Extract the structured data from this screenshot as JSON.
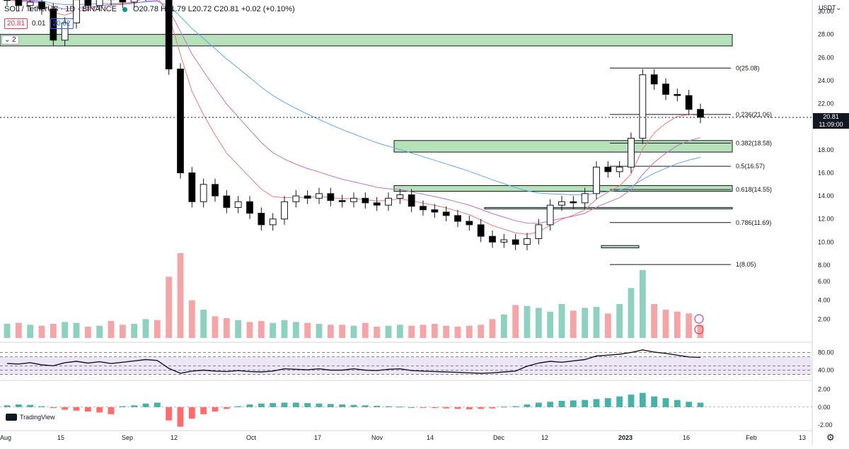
{
  "header": {
    "symbol": "SOL / TetherUS · 1D · BINANCE",
    "ohlc": "O20.78 H21.79 L20.72 C20.81 +0.02 (+0.10%)",
    "sell_price": "20.81",
    "spread": "0.01",
    "buy_price": "20.82",
    "indicator_count": "2",
    "currency": "USDT"
  },
  "price_axis": {
    "ticks": [
      "30.00",
      "28.00",
      "26.00",
      "24.00",
      "22.00",
      "20.00",
      "18.00",
      "16.00",
      "14.00",
      "12.00",
      "10.00",
      "8.00",
      "6.00",
      "4.00",
      "2.00"
    ],
    "current_price": "20.81",
    "countdown": "11:09:00"
  },
  "time_axis": {
    "labels": [
      "Aug",
      "15",
      "Sep",
      "12",
      "Oct",
      "17",
      "Nov",
      "14",
      "Dec",
      "12",
      "2023",
      "16",
      "Feb",
      "13"
    ]
  },
  "rsi_axis": {
    "ticks": [
      "80.00",
      "40.00"
    ]
  },
  "macd_axis": {
    "ticks": [
      "2.00",
      "0.00",
      "-2.00"
    ]
  },
  "branding": "TradingView",
  "colors": {
    "up": "#089981",
    "down": "#000000",
    "zone": "#b7e1b9",
    "volume_up": "#8fd1c1",
    "volume_down": "#f5a5a5",
    "ema_blue": "#5aaaf0",
    "ema_red": "#f27878",
    "ema_purple": "#c070c8"
  },
  "chart_data": [
    {
      "type": "candlestick",
      "symbol": "SOL/USDT",
      "interval": "1D",
      "ylim": [
        8.0,
        30.0
      ],
      "fibonacci_levels": [
        {
          "level": "0",
          "price": 25.08,
          "label": "0(25.08)"
        },
        {
          "level": "0.236",
          "price": 21.06,
          "label": "0.236(21.06)"
        },
        {
          "level": "0.382",
          "price": 18.58,
          "label": "0.382(18.58)"
        },
        {
          "level": "0.5",
          "price": 16.57,
          "label": "0.5(16.57)"
        },
        {
          "level": "0.618",
          "price": 14.55,
          "label": "0.618(14.55)"
        },
        {
          "level": "0.786",
          "price": 11.69,
          "label": "0.786(11.69)"
        },
        {
          "level": "1",
          "price": 8.05,
          "label": "1(8.05)"
        }
      ],
      "support_zones": [
        {
          "from": 27.0,
          "to": 28.0
        },
        {
          "from": 17.8,
          "to": 18.8
        },
        {
          "from": 14.4,
          "to": 14.9
        },
        {
          "from": 12.9,
          "to": 13.0
        },
        {
          "from": 9.5,
          "to": 9.7
        }
      ],
      "series": [
        {
          "name": "SOL/USDT",
          "close": [
            31,
            30.5,
            30.8,
            30.2,
            27.5,
            29,
            31,
            30.5,
            31.5,
            31,
            30.8,
            31.4,
            32,
            31.5,
            25,
            16,
            13.5,
            15,
            14,
            13,
            13.5,
            12.5,
            11.5,
            12,
            13.5,
            14,
            13.8,
            14.2,
            13.6,
            13.5,
            13.8,
            13.4,
            13.2,
            13.8,
            14.1,
            13.1,
            12.8,
            12.6,
            12.3,
            11.8,
            11.5,
            10.5,
            10,
            10.2,
            9.8,
            10.3,
            11.5,
            13.2,
            13.5,
            13.4,
            14.2,
            16.5,
            16.1,
            16.5,
            19,
            24.5,
            23.7,
            22.8,
            22.7,
            21.5,
            20.81
          ]
        }
      ]
    },
    {
      "type": "bar",
      "name": "Volume",
      "ylim": [
        0,
        9
      ],
      "values": [
        1.5,
        1.6,
        1.4,
        1.3,
        1.5,
        1.7,
        1.6,
        1.2,
        1.3,
        1.8,
        1.4,
        1.5,
        2.0,
        1.9,
        6.5,
        9.0,
        4.0,
        3.0,
        2.3,
        2.1,
        1.9,
        1.7,
        1.8,
        1.6,
        1.9,
        1.7,
        1.6,
        1.5,
        1.4,
        1.4,
        1.3,
        1.6,
        1.2,
        1.3,
        1.4,
        1.3,
        1.4,
        1.5,
        1.3,
        1.2,
        1.3,
        1.4,
        2.0,
        2.5,
        3.5,
        3.4,
        3.2,
        2.8,
        3.6,
        2.9,
        3.2,
        3.3,
        2.6,
        3.6,
        5.3,
        7.2,
        3.6,
        3.0,
        2.8,
        2.6,
        1.4
      ]
    },
    {
      "type": "line",
      "name": "RSI",
      "ylim": [
        20,
        100
      ],
      "hlines": [
        80,
        70,
        50,
        40,
        30
      ],
      "values": [
        55,
        54,
        57,
        52,
        50,
        57,
        60,
        56,
        59,
        55,
        58,
        61,
        64,
        62,
        44,
        33,
        38,
        40,
        38,
        37,
        39,
        37,
        36,
        38,
        43,
        42,
        41,
        43,
        40,
        40,
        43,
        40,
        39,
        42,
        43,
        39,
        38,
        37,
        36,
        35,
        34,
        33,
        34,
        36,
        38,
        49,
        56,
        60,
        58,
        61,
        64,
        72,
        74,
        76,
        80,
        86,
        81,
        78,
        74,
        70,
        69
      ]
    },
    {
      "type": "bar",
      "name": "MACD",
      "ylim": [
        -2.4,
        2.6
      ],
      "values": [
        0.2,
        0.3,
        0.25,
        0.1,
        -0.1,
        -0.3,
        -0.4,
        -0.5,
        -0.6,
        -0.8,
        0.1,
        0.2,
        0.4,
        0.5,
        -1.5,
        -2.2,
        -1.3,
        -0.8,
        -0.5,
        -0.2,
        0.1,
        0.3,
        0.4,
        0.45,
        0.5,
        0.5,
        0.45,
        0.4,
        0.35,
        0.3,
        0.25,
        0.2,
        0.15,
        0.1,
        0.05,
        0.0,
        -0.05,
        -0.1,
        -0.15,
        -0.2,
        -0.25,
        -0.2,
        -0.15,
        0.05,
        0.1,
        0.3,
        0.5,
        0.6,
        0.7,
        0.75,
        0.8,
        0.9,
        1.0,
        1.2,
        1.4,
        1.6,
        1.2,
        1.0,
        0.8,
        0.6,
        0.5
      ]
    }
  ]
}
